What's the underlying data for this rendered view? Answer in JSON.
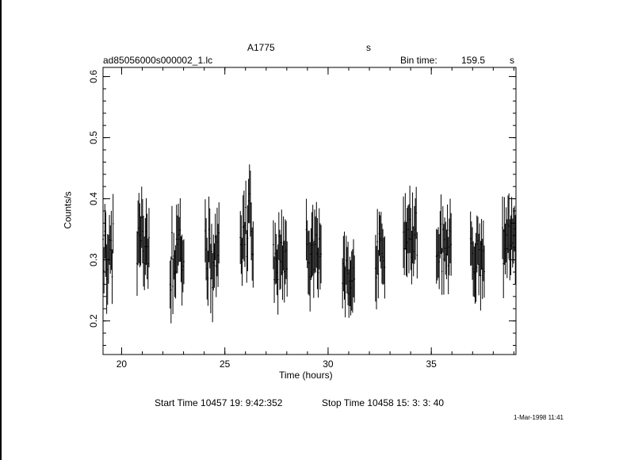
{
  "header": {
    "object_name": "A1775",
    "object_unit": "s",
    "file_name": "ad85056000s000002_1.lc",
    "bin_time_label": "Bin time:",
    "bin_time_value": "159.5",
    "bin_time_unit": "s"
  },
  "footer": {
    "start_time": "Start Time 10457 19: 9:42:352",
    "stop_time": "Stop Time 10458 15: 3: 3: 40",
    "plot_date": "1-Mar-1998 11:41"
  },
  "chart_data": {
    "type": "scatter",
    "xlabel": "Time (hours)",
    "ylabel": "Counts/s",
    "xlim": [
      19.1,
      39.1
    ],
    "ylim": [
      0.145,
      0.615
    ],
    "xticks": [
      20,
      25,
      30,
      35
    ],
    "yticks": [
      0.2,
      0.3,
      0.4,
      0.5,
      0.6
    ],
    "xtick_labels": [
      "20",
      "25",
      "30",
      "35"
    ],
    "ytick_labels": [
      "0.2",
      "0.3",
      "0.4",
      "0.5",
      "0.6"
    ],
    "grid": false,
    "x_minor_step": 1,
    "y_minor_step": 0.02,
    "segments": [
      {
        "start": 19.1,
        "end": 19.62,
        "peak": 0.31,
        "amp": 0.05
      },
      {
        "start": 20.75,
        "end": 21.35,
        "peak": 0.33,
        "amp": 0.04
      },
      {
        "start": 22.35,
        "end": 23.05,
        "peak": 0.3,
        "amp": 0.05
      },
      {
        "start": 24.05,
        "end": 24.75,
        "peak": 0.3,
        "amp": 0.05
      },
      {
        "start": 25.75,
        "end": 26.4,
        "peak": 0.35,
        "amp": 0.06
      },
      {
        "start": 27.35,
        "end": 28.05,
        "peak": 0.3,
        "amp": 0.04
      },
      {
        "start": 28.95,
        "end": 29.7,
        "peak": 0.31,
        "amp": 0.04
      },
      {
        "start": 30.7,
        "end": 31.3,
        "peak": 0.27,
        "amp": 0.03
      },
      {
        "start": 32.3,
        "end": 32.75,
        "peak": 0.31,
        "amp": 0.04
      },
      {
        "start": 33.65,
        "end": 34.35,
        "peak": 0.34,
        "amp": 0.04
      },
      {
        "start": 35.25,
        "end": 36.0,
        "peak": 0.32,
        "amp": 0.04
      },
      {
        "start": 36.9,
        "end": 37.6,
        "peak": 0.3,
        "amp": 0.04
      },
      {
        "start": 38.45,
        "end": 39.1,
        "peak": 0.32,
        "amp": 0.04
      }
    ],
    "bin_hours": 0.0443,
    "err_half": 0.045,
    "color": "#000000"
  }
}
